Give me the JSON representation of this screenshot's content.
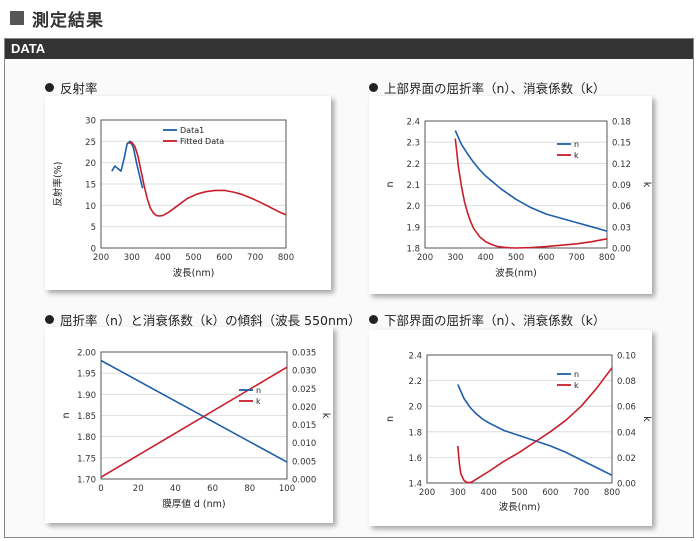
{
  "page": {
    "title": "測定結果"
  },
  "panel": {
    "header": "DATA"
  },
  "headings": {
    "c1": "反射率",
    "c2": "上部界面の屈折率（n）、消衰係数（k）",
    "c3": "屈折率（n）と消衰係数（k）の傾斜（波長 550nm）",
    "c4": "下部界面の屈折率（n）、消衰係数（k）"
  },
  "colors": {
    "blue": "#1f5fa8",
    "red": "#c81e2a"
  },
  "chart_data": [
    {
      "id": "c1",
      "type": "line",
      "title": "反射率",
      "xlabel": "波長(nm)",
      "ylabel": "反射率(%)",
      "xlim": [
        200,
        800
      ],
      "ylim": [
        0,
        30
      ],
      "xticks": [
        200,
        300,
        400,
        500,
        600,
        700,
        800
      ],
      "yticks": [
        0,
        5,
        10,
        15,
        20,
        25,
        30
      ],
      "yticklabels": [
        "0",
        "5",
        "10",
        "15",
        "20",
        "25",
        "30"
      ],
      "legend_position": "top-center",
      "series": [
        {
          "name": "Data1",
          "color": "#1f5fa8",
          "x": [
            235,
            245,
            255,
            265,
            275,
            285,
            295,
            305,
            315,
            325,
            335
          ],
          "y": [
            18.0,
            19.2,
            18.6,
            18.0,
            21.0,
            24.5,
            25.0,
            23.5,
            20.0,
            17.0,
            14.0
          ]
        },
        {
          "name": "Fitted Data",
          "color": "#c81e2a",
          "x": [
            290,
            300,
            310,
            320,
            330,
            340,
            350,
            360,
            370,
            380,
            390,
            400,
            420,
            450,
            480,
            510,
            540,
            570,
            600,
            630,
            660,
            690,
            720,
            750,
            780,
            800
          ],
          "y": [
            24.5,
            24.8,
            23.8,
            21.5,
            18.0,
            14.5,
            11.5,
            9.4,
            8.2,
            7.6,
            7.5,
            7.6,
            8.4,
            10.0,
            11.6,
            12.6,
            13.2,
            13.5,
            13.5,
            13.1,
            12.5,
            11.6,
            10.6,
            9.5,
            8.4,
            7.8
          ]
        }
      ]
    },
    {
      "id": "c2",
      "type": "line",
      "title": "",
      "xlabel": "波長(nm)",
      "ylabel": "n",
      "y2label": "k",
      "xlim": [
        200,
        800
      ],
      "ylim": [
        1.8,
        2.4
      ],
      "y2lim": [
        0,
        0.18
      ],
      "xticks": [
        200,
        300,
        400,
        500,
        600,
        700,
        800
      ],
      "yticks": [
        1.8,
        1.9,
        2.0,
        2.1,
        2.2,
        2.3,
        2.4
      ],
      "yticklabels": [
        "1.8",
        "1.9",
        "2.0",
        "2.1",
        "2.2",
        "2.3",
        "2.4"
      ],
      "y2ticks": [
        0,
        0.03,
        0.06,
        0.09,
        0.12,
        0.15,
        0.18
      ],
      "y2ticklabels": [
        "0.00",
        "0.03",
        "0.06",
        "0.09",
        "0.12",
        "0.15",
        "0.18"
      ],
      "legend_position": "top-right",
      "series": [
        {
          "name": "n",
          "color": "#1f5fa8",
          "axis": "left",
          "x": [
            300,
            320,
            340,
            360,
            380,
            400,
            450,
            500,
            550,
            600,
            650,
            700,
            750,
            800
          ],
          "y": [
            2.355,
            2.29,
            2.245,
            2.205,
            2.17,
            2.14,
            2.08,
            2.03,
            1.99,
            1.96,
            1.94,
            1.92,
            1.9,
            1.88
          ]
        },
        {
          "name": "k",
          "color": "#c81e2a",
          "axis": "right",
          "x": [
            300,
            310,
            320,
            330,
            340,
            350,
            360,
            380,
            400,
            420,
            440,
            460,
            480,
            500,
            550,
            600,
            650,
            700,
            750,
            800
          ],
          "y": [
            0.155,
            0.115,
            0.088,
            0.066,
            0.05,
            0.038,
            0.028,
            0.016,
            0.009,
            0.005,
            0.002,
            0.001,
            0.0003,
            0.0,
            0.0005,
            0.002,
            0.004,
            0.006,
            0.009,
            0.013
          ]
        }
      ]
    },
    {
      "id": "c3",
      "type": "line",
      "title": "",
      "xlabel": "膜厚値 d (nm)",
      "ylabel": "n",
      "y2label": "k",
      "xlim": [
        0,
        100
      ],
      "ylim": [
        1.7,
        2.0
      ],
      "y2lim": [
        0,
        0.035
      ],
      "xticks": [
        0,
        20,
        40,
        60,
        80,
        100
      ],
      "yticks": [
        1.7,
        1.75,
        1.8,
        1.85,
        1.9,
        1.95,
        2.0
      ],
      "yticklabels": [
        "1.70",
        "1.75",
        "1.80",
        "1.85",
        "1.90",
        "1.95",
        "2.00"
      ],
      "y2ticks": [
        0,
        0.005,
        0.01,
        0.015,
        0.02,
        0.025,
        0.03,
        0.035
      ],
      "y2ticklabels": [
        "0.000",
        "0.005",
        "0.010",
        "0.015",
        "0.020",
        "0.025",
        "0.030",
        "0.035"
      ],
      "legend_position": "center-right",
      "series": [
        {
          "name": "n",
          "color": "#1f5fa8",
          "axis": "left",
          "x": [
            0,
            100
          ],
          "y": [
            1.98,
            1.74
          ]
        },
        {
          "name": "k",
          "color": "#c81e2a",
          "axis": "right",
          "x": [
            0,
            100
          ],
          "y": [
            0.0005,
            0.0308
          ]
        }
      ]
    },
    {
      "id": "c4",
      "type": "line",
      "title": "",
      "xlabel": "波長(nm)",
      "ylabel": "n",
      "y2label": "k",
      "xlim": [
        200,
        800
      ],
      "ylim": [
        1.4,
        2.4
      ],
      "y2lim": [
        0,
        0.1
      ],
      "xticks": [
        200,
        300,
        400,
        500,
        600,
        700,
        800
      ],
      "yticks": [
        1.4,
        1.6,
        1.8,
        2.0,
        2.2,
        2.4
      ],
      "yticklabels": [
        "1.4",
        "1.6",
        "1.8",
        "2.0",
        "2.2",
        "2.4"
      ],
      "y2ticks": [
        0,
        0.02,
        0.04,
        0.06,
        0.08,
        0.1
      ],
      "y2ticklabels": [
        "0.00",
        "0.02",
        "0.04",
        "0.06",
        "0.08",
        "0.10"
      ],
      "legend_position": "top-right",
      "series": [
        {
          "name": "n",
          "color": "#1f5fa8",
          "axis": "left",
          "x": [
            300,
            320,
            340,
            360,
            380,
            400,
            450,
            500,
            550,
            600,
            650,
            700,
            750,
            800
          ],
          "y": [
            2.17,
            2.06,
            1.99,
            1.94,
            1.9,
            1.87,
            1.81,
            1.77,
            1.73,
            1.69,
            1.64,
            1.58,
            1.52,
            1.46
          ]
        },
        {
          "name": "k",
          "color": "#c81e2a",
          "axis": "right",
          "x": [
            300,
            305,
            310,
            320,
            330,
            340,
            350,
            360,
            380,
            400,
            450,
            500,
            550,
            600,
            650,
            700,
            750,
            800
          ],
          "y": [
            0.029,
            0.015,
            0.007,
            0.002,
            0.0005,
            0.0003,
            0.0015,
            0.003,
            0.006,
            0.009,
            0.017,
            0.024,
            0.032,
            0.04,
            0.049,
            0.06,
            0.074,
            0.09
          ]
        }
      ]
    }
  ]
}
